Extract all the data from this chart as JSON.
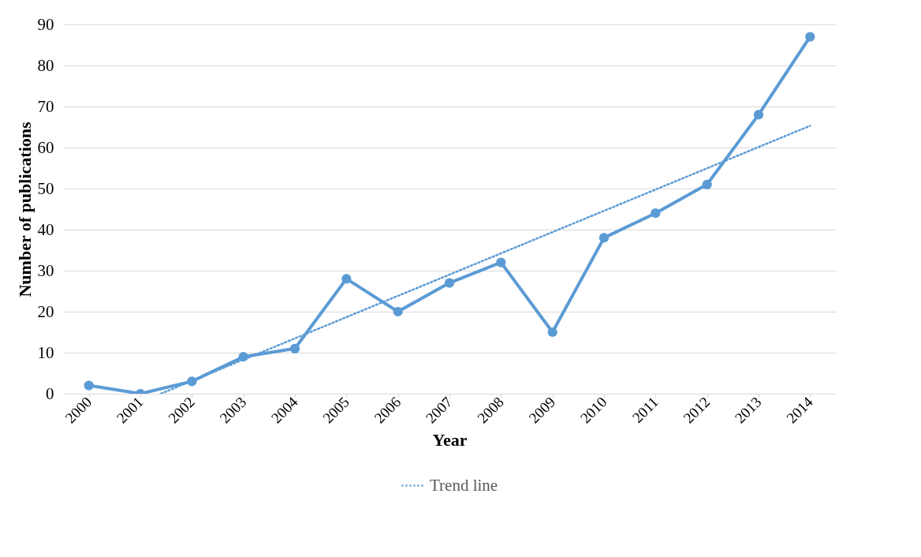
{
  "chart_data": {
    "type": "line",
    "xlabel": "Year",
    "ylabel": "Number of publications",
    "x": [
      2000,
      2001,
      2002,
      2003,
      2004,
      2005,
      2006,
      2007,
      2008,
      2009,
      2010,
      2011,
      2012,
      2013,
      2014
    ],
    "xlim": [
      1999.5,
      2014.5
    ],
    "xticks": [
      2000,
      2001,
      2002,
      2003,
      2004,
      2005,
      2006,
      2007,
      2008,
      2009,
      2010,
      2011,
      2012,
      2013,
      2014
    ],
    "ylim": [
      0,
      90
    ],
    "yticks": [
      0,
      10,
      20,
      30,
      40,
      50,
      60,
      70,
      80,
      90
    ],
    "series": [
      {
        "color": "#5b9bd5",
        "marker": "circle",
        "line_style": "solid",
        "values": [
          2,
          0,
          3,
          9,
          11,
          28,
          20,
          27,
          32,
          15,
          38,
          44,
          51,
          68,
          87
        ]
      },
      {
        "name": "Trend line",
        "type": "line",
        "color": "#5b9bd5",
        "marker": "none",
        "line_style": "dotted",
        "x": [
          2001.4,
          2014
        ],
        "values": [
          0,
          65.3
        ]
      }
    ],
    "grid": "y",
    "legend": "bottom"
  }
}
